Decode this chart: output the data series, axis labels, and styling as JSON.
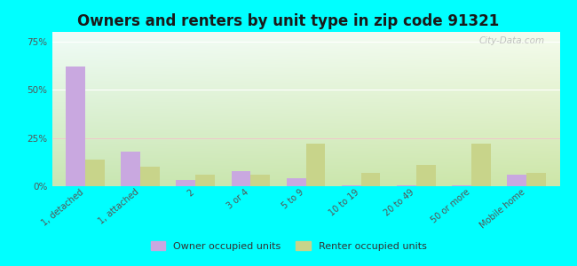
{
  "title": "Owners and renters by unit type in zip code 91321",
  "categories": [
    "1, detached",
    "1, attached",
    "2",
    "3 or 4",
    "5 to 9",
    "10 to 19",
    "20 to 49",
    "50 or more",
    "Mobile home"
  ],
  "owner_values": [
    62,
    18,
    3,
    8,
    4,
    0.5,
    0.5,
    0.5,
    6
  ],
  "renter_values": [
    14,
    10,
    6,
    6,
    22,
    7,
    11,
    22,
    7
  ],
  "owner_color": "#c9a8e0",
  "renter_color": "#c8d48a",
  "background_color": "#00ffff",
  "title_fontsize": 12,
  "ylabel_ticks": [
    "0%",
    "25%",
    "50%",
    "75%"
  ],
  "ylabel_values": [
    0,
    25,
    50,
    75
  ],
  "ylim": [
    0,
    80
  ],
  "bar_width": 0.35,
  "watermark": "City-Data.com",
  "owner_label": "Owner occupied units",
  "renter_label": "Renter occupied units"
}
